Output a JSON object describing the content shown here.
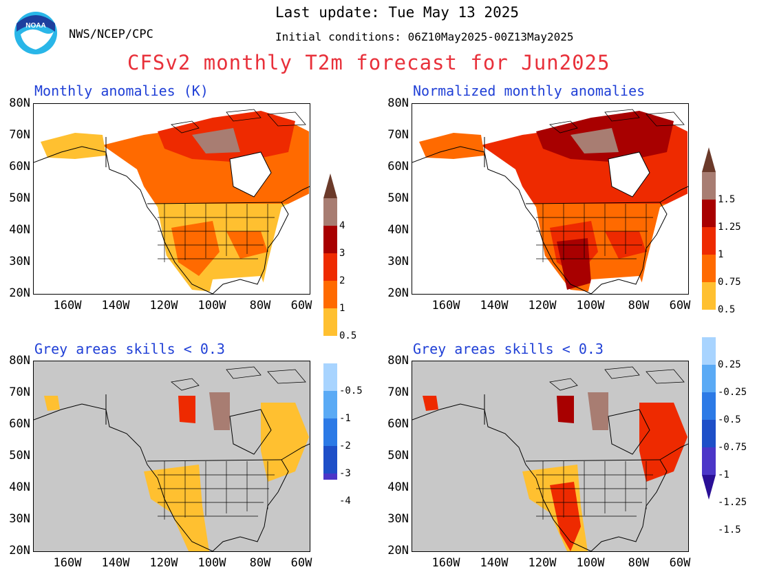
{
  "header": {
    "agency": "NWS/NCEP/CPC",
    "last_update": "Last update: Tue May 13 2025",
    "initial_conditions": "Initial conditions: 06Z10May2025-00Z13May2025",
    "title": "CFSv2 monthly T2m forecast for Jun2025",
    "logo_text": "NOAA"
  },
  "panels": [
    {
      "title": "Monthly anomalies (K)"
    },
    {
      "title": "Normalized monthly anomalies"
    },
    {
      "title": "Grey areas skills < 0.3"
    },
    {
      "title": "Grey areas skills < 0.3"
    }
  ],
  "axes": {
    "lat_labels": [
      "80N",
      "70N",
      "60N",
      "50N",
      "40N",
      "30N",
      "20N"
    ],
    "lon_labels": [
      "160W",
      "140W",
      "120W",
      "100W",
      "80W",
      "60W"
    ]
  },
  "colorbar_left": {
    "labels": [
      "4",
      "3",
      "2",
      "1",
      "0.5",
      "-0.5",
      "-1",
      "-2",
      "-3",
      "-4"
    ],
    "colors": [
      "#6b3a2a",
      "#a87d72",
      "#a80000",
      "#ee2a00",
      "#ff6a00",
      "#ffc030",
      "#ffffff",
      "#a8d4ff",
      "#5aaaf5",
      "#2c7ae6",
      "#1e4fc8",
      "#4b36c8",
      "#2a0f96"
    ]
  },
  "colorbar_right": {
    "labels": [
      "1.5",
      "1.25",
      "1",
      "0.75",
      "0.5",
      "0.25",
      "-0.25",
      "-0.5",
      "-0.75",
      "-1",
      "-1.25",
      "-1.5"
    ],
    "colors": [
      "#6b3a2a",
      "#a87d72",
      "#a80000",
      "#ee2a00",
      "#ff6a00",
      "#ffc030",
      "#ffffff",
      "#a8d4ff",
      "#5aaaf5",
      "#2c7ae6",
      "#1e4fc8",
      "#4b36c8",
      "#2a0f96"
    ]
  },
  "colors": {
    "land_white": "#ffffff",
    "no_skill_grey": "#c8c8c8",
    "warm1": "#ffc030",
    "warm2": "#ff6a00",
    "warm3": "#ee2a00",
    "warm4": "#a80000",
    "warm5": "#a87d72",
    "title_red": "#e8303a",
    "panel_title_blue": "#1f3fd6"
  }
}
